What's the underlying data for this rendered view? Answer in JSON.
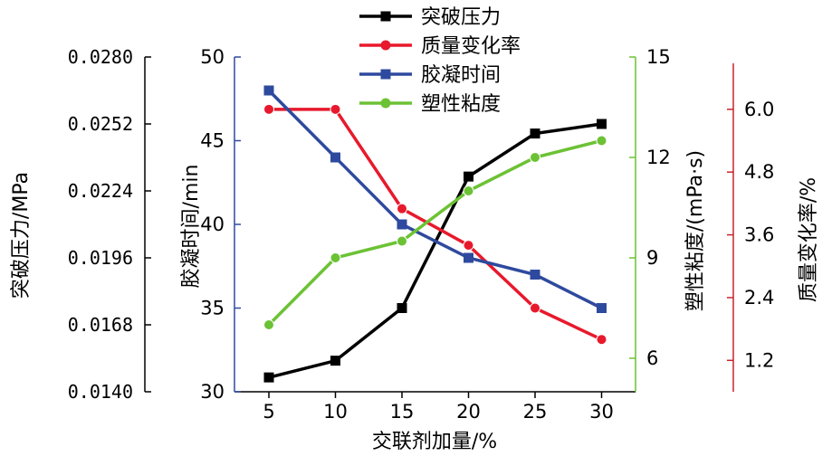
{
  "chart_data": {
    "type": "line",
    "xlabel": "交联剂加量/%",
    "x": [
      5,
      10,
      15,
      20,
      25,
      30
    ],
    "axes": {
      "pressure": {
        "label": "突破压力/MPa",
        "ylim": [
          0.014,
          0.028
        ],
        "ticks": [
          "0.0140",
          "0.0168",
          "0.0196",
          "0.0224",
          "0.0252",
          "0.0280"
        ]
      },
      "gel_time": {
        "label": "胶凝时间/min",
        "ylim": [
          30,
          50
        ],
        "ticks": [
          "30",
          "35",
          "40",
          "45",
          "50"
        ]
      },
      "viscosity": {
        "label": "塑性粘度/(mPa·s)",
        "ylim": [
          5,
          15
        ],
        "ticks": [
          "6",
          "9",
          "12",
          "15"
        ]
      },
      "mass_change": {
        "label": "质量变化率/%",
        "ylim": [
          0.6,
          7.0
        ],
        "ticks": [
          "1.2",
          "2.4",
          "3.6",
          "4.8",
          "6.0"
        ]
      }
    },
    "series": [
      {
        "name": "突破压力",
        "axis": "pressure",
        "color": "#000000",
        "marker": "square",
        "values": [
          0.0146,
          0.0153,
          0.0175,
          0.023,
          0.0248,
          0.0252
        ]
      },
      {
        "name": "质量变化率",
        "axis": "mass_change",
        "color": "#e8192c",
        "marker": "circle",
        "values": [
          6.0,
          6.0,
          4.1,
          3.4,
          2.2,
          1.6
        ]
      },
      {
        "name": "胶凝时间",
        "axis": "gel_time",
        "color": "#2e4a9e",
        "marker": "square",
        "values": [
          48,
          44,
          40,
          38,
          37,
          35
        ]
      },
      {
        "name": "塑性粘度",
        "axis": "viscosity",
        "color": "#6cc235",
        "marker": "circle",
        "values": [
          7.0,
          9.0,
          9.5,
          11.0,
          12.0,
          12.5
        ]
      }
    ],
    "legend_position": "top"
  }
}
